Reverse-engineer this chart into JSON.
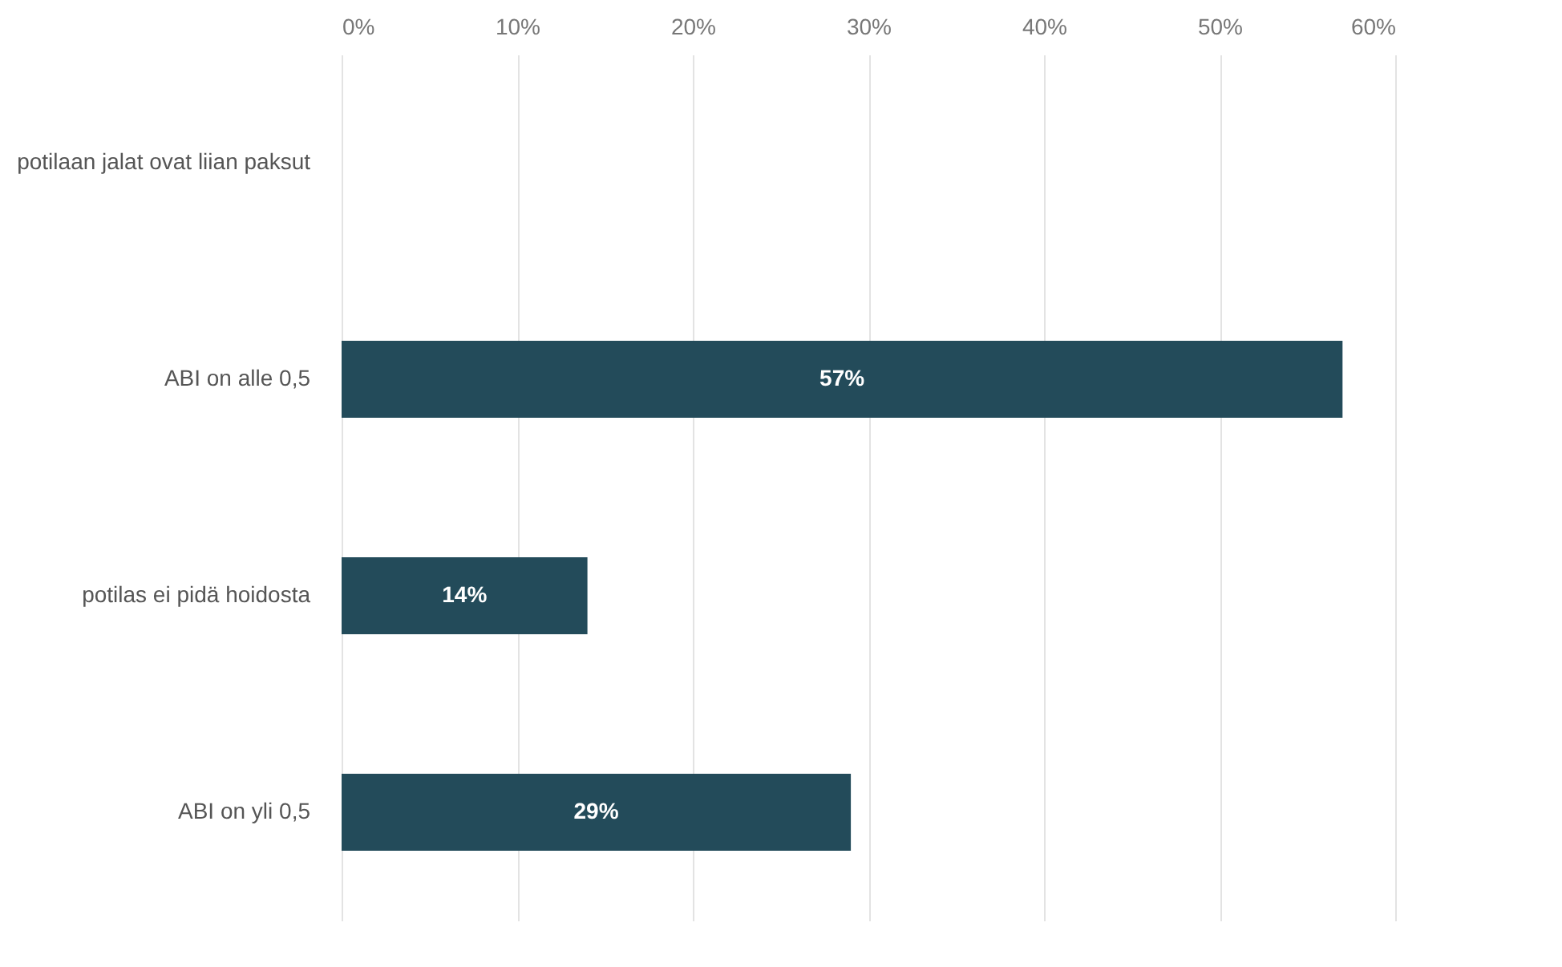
{
  "chart_data": {
    "type": "bar",
    "orientation": "horizontal",
    "categories": [
      "potilaan jalat ovat liian paksut",
      "ABI on alle 0,5",
      "potilas ei pidä hoidosta",
      "ABI on yli 0,5"
    ],
    "values": [
      0,
      57,
      14,
      29
    ],
    "value_labels": [
      null,
      "57%",
      "14%",
      "29%"
    ],
    "color": "#234b5a",
    "xlim": [
      0,
      60
    ],
    "xticks": [
      {
        "value": 0,
        "label": "0%"
      },
      {
        "value": 10,
        "label": "10%"
      },
      {
        "value": 20,
        "label": "20%"
      },
      {
        "value": 30,
        "label": "30%"
      },
      {
        "value": 40,
        "label": "40%"
      },
      {
        "value": 50,
        "label": "50%"
      },
      {
        "value": 60,
        "label": "60%"
      }
    ],
    "grid": "x"
  }
}
